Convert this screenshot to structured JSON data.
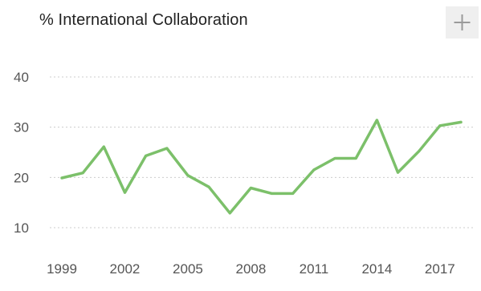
{
  "header": {
    "title": "% International Collaboration",
    "expand_icon": "plus-icon"
  },
  "colors": {
    "line": "#7cc06a",
    "grid": "#cccccc",
    "text": "#555555",
    "button_bg": "#efefef",
    "icon": "#9a9a9a"
  },
  "chart_data": {
    "type": "line",
    "title": "% International Collaboration",
    "xlabel": "",
    "ylabel": "",
    "x": [
      1999,
      2000,
      2001,
      2002,
      2003,
      2004,
      2005,
      2006,
      2007,
      2008,
      2009,
      2010,
      2011,
      2012,
      2013,
      2014,
      2015,
      2016,
      2017,
      2018
    ],
    "series": [
      {
        "values": [
          19.9,
          20.9,
          26.1,
          17.0,
          24.3,
          25.8,
          20.4,
          18.1,
          12.9,
          17.9,
          16.8,
          16.8,
          21.5,
          23.8,
          23.8,
          31.4,
          21.0,
          25.2,
          30.3,
          31.0
        ]
      }
    ],
    "x_ticks": [
      "1999",
      "2002",
      "2005",
      "2008",
      "2011",
      "2014",
      "2017"
    ],
    "x_tick_values": [
      1999,
      2002,
      2005,
      2008,
      2011,
      2014,
      2017
    ],
    "y_ticks": [
      "10",
      "20",
      "30",
      "40"
    ],
    "y_tick_values": [
      10,
      20,
      30,
      40
    ],
    "ylim": [
      10,
      40
    ],
    "xlim": [
      1999,
      2018
    ],
    "grid": "horizontal dotted",
    "legend": "none"
  }
}
